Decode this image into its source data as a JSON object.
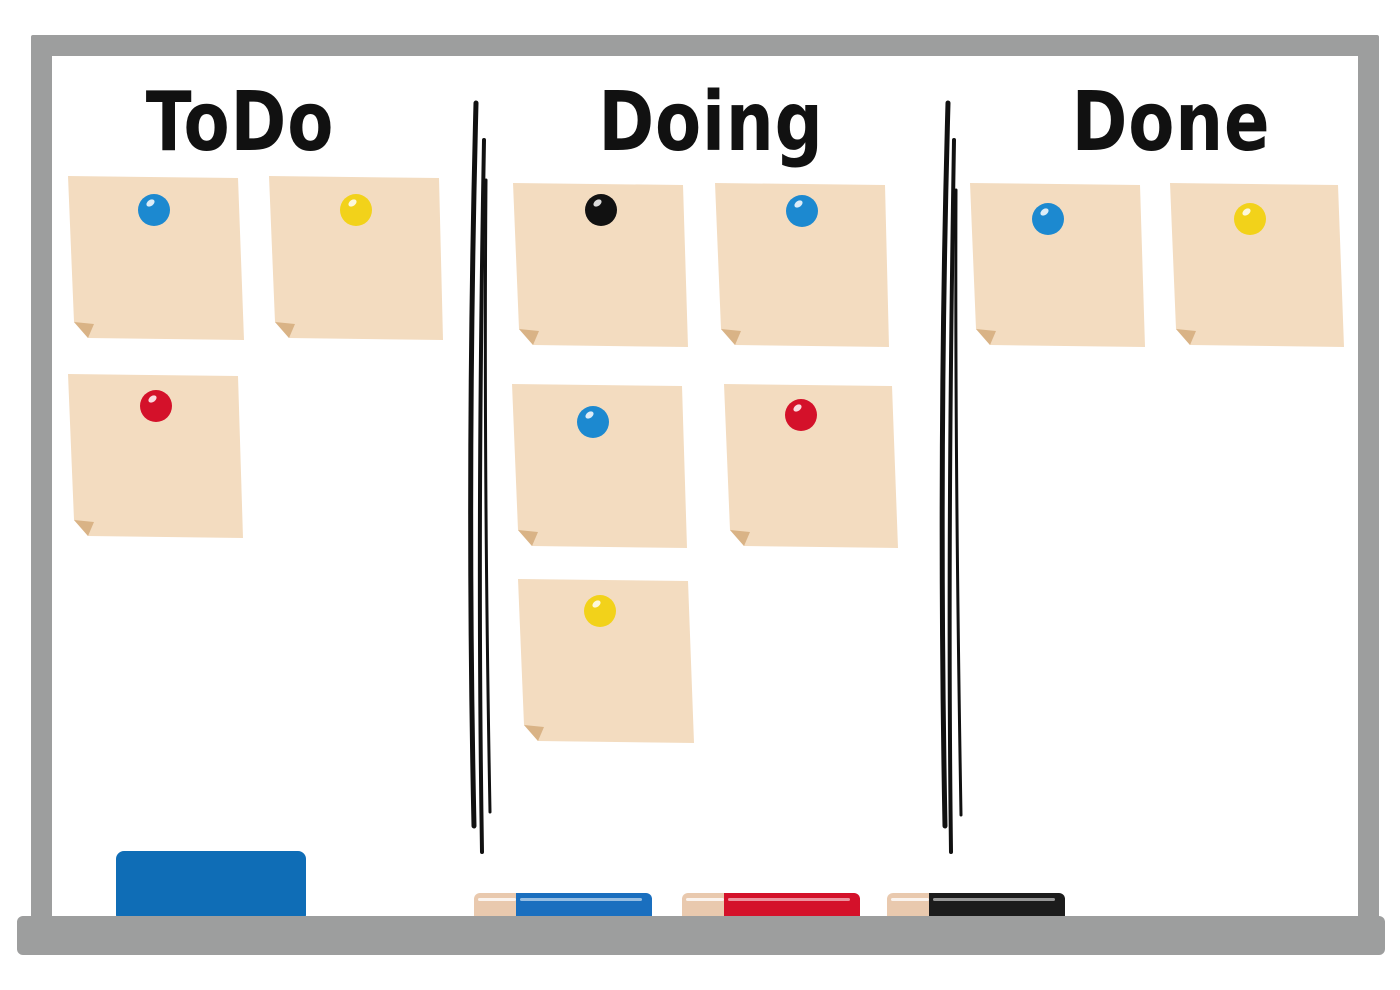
{
  "board": {
    "columns": [
      {
        "title": "ToDo"
      },
      {
        "title": "Doing"
      },
      {
        "title": "Done"
      }
    ]
  },
  "notes": {
    "todo": [
      {
        "pin": "blue-pin"
      },
      {
        "pin": "yellow-pin"
      },
      {
        "pin": "red-pin"
      }
    ],
    "doing": [
      {
        "pin": "black-pin"
      },
      {
        "pin": "blue-pin"
      },
      {
        "pin": "blue-pin"
      },
      {
        "pin": "red-pin"
      },
      {
        "pin": "yellow-pin"
      }
    ],
    "done": [
      {
        "pin": "blue-pin"
      },
      {
        "pin": "yellow-pin"
      }
    ]
  },
  "colors": {
    "frame": "#9d9e9e",
    "note": "#f3dcc0",
    "note_fold": "#d9b386",
    "pin_blue": "#1c89d0",
    "pin_yellow": "#f2d21a",
    "pin_red": "#d4112a",
    "pin_black": "#111111",
    "eraser": "#0f6db6",
    "marker_blue": "#1a6fbf",
    "marker_red": "#d4112a",
    "marker_black": "#1c1c1c"
  },
  "tray_items": [
    {
      "name": "eraser"
    },
    {
      "name": "blue-marker"
    },
    {
      "name": "red-marker"
    },
    {
      "name": "black-marker"
    }
  ]
}
